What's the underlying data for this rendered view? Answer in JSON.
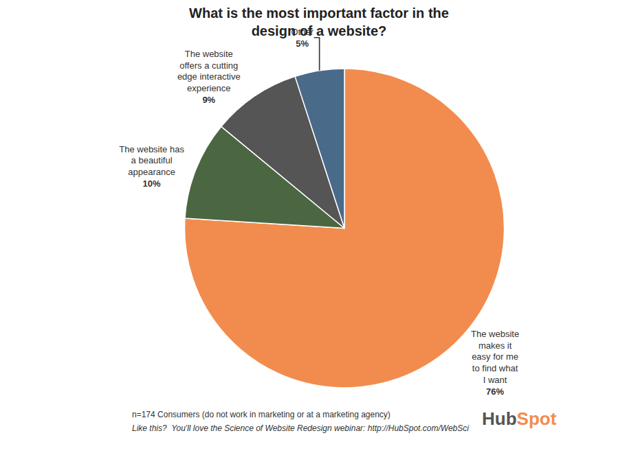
{
  "chart_data": {
    "type": "pie",
    "title": "What is the most important factor in the\ndesign of a website?",
    "categories": [
      "The website\nmakes it\neasy for me\nto find what\nI want",
      "The website has\na beautiful\nappearance",
      "The website\noffers a cutting\nedge interactive\nexperience",
      "Other"
    ],
    "values": [
      76,
      10,
      9,
      5
    ],
    "value_labels": [
      "76%",
      "10%",
      "9%",
      "5%"
    ],
    "colors": [
      "#F28C4E",
      "#4A6741",
      "#555555",
      "#4A6A8A"
    ],
    "data_labels": true,
    "annotations": [
      {
        "text": "n=174 Consumers (do not work in marketing or at a marketing agency)"
      },
      {
        "text": "Like this?  You'll love the Science of Website Redesign webinar: http://HubSpot.com/WebSci"
      },
      {
        "text": "Hub",
        "color": "#555555"
      },
      {
        "text": "Spot",
        "color": "#F28C4E"
      }
    ]
  }
}
